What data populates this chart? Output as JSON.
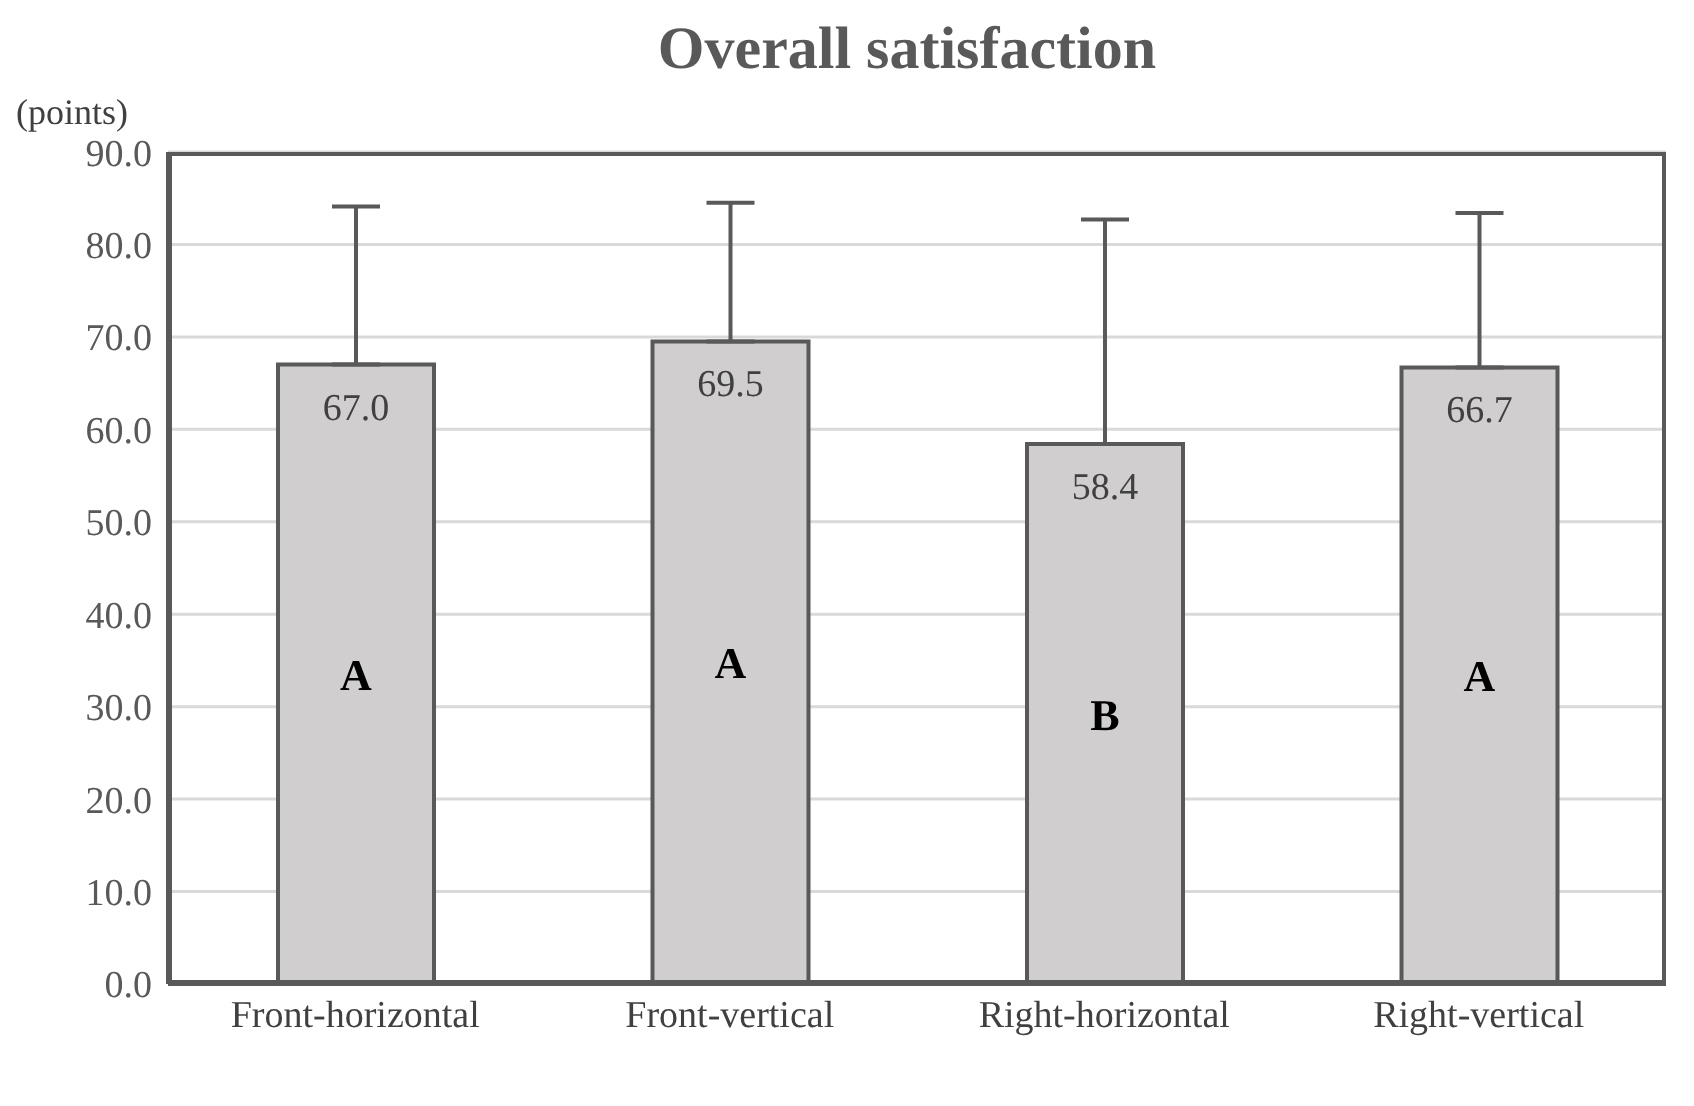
{
  "chart_data": {
    "type": "bar",
    "title": "Overall satisfaction",
    "ylabel": "(points)",
    "categories": [
      "Front-horizontal",
      "Front-vertical",
      "Right-horizontal",
      "Right-vertical"
    ],
    "values": [
      67.0,
      69.5,
      58.4,
      66.7
    ],
    "value_labels": [
      "67.0",
      "69.5",
      "58.4",
      "66.7"
    ],
    "errors": [
      [
        67.0,
        84.1
      ],
      [
        69.5,
        84.5
      ],
      [
        58.4,
        82.7
      ],
      [
        66.7,
        83.4
      ]
    ],
    "color": "#d0cece",
    "ylim": [
      0,
      90
    ],
    "yticks": [
      {
        "value": 0,
        "label": "0.0"
      },
      {
        "value": 10,
        "label": "10.0"
      },
      {
        "value": 20,
        "label": "20.0"
      },
      {
        "value": 30,
        "label": "30.0"
      },
      {
        "value": 40,
        "label": "40.0"
      },
      {
        "value": 50,
        "label": "50.0"
      },
      {
        "value": 60,
        "label": "60.0"
      },
      {
        "value": 70,
        "label": "70.0"
      },
      {
        "value": 80,
        "label": "80.0"
      },
      {
        "value": 90,
        "label": "90.0"
      }
    ],
    "grid": "y",
    "annotations": [
      "A",
      "A",
      "B",
      "A"
    ]
  }
}
